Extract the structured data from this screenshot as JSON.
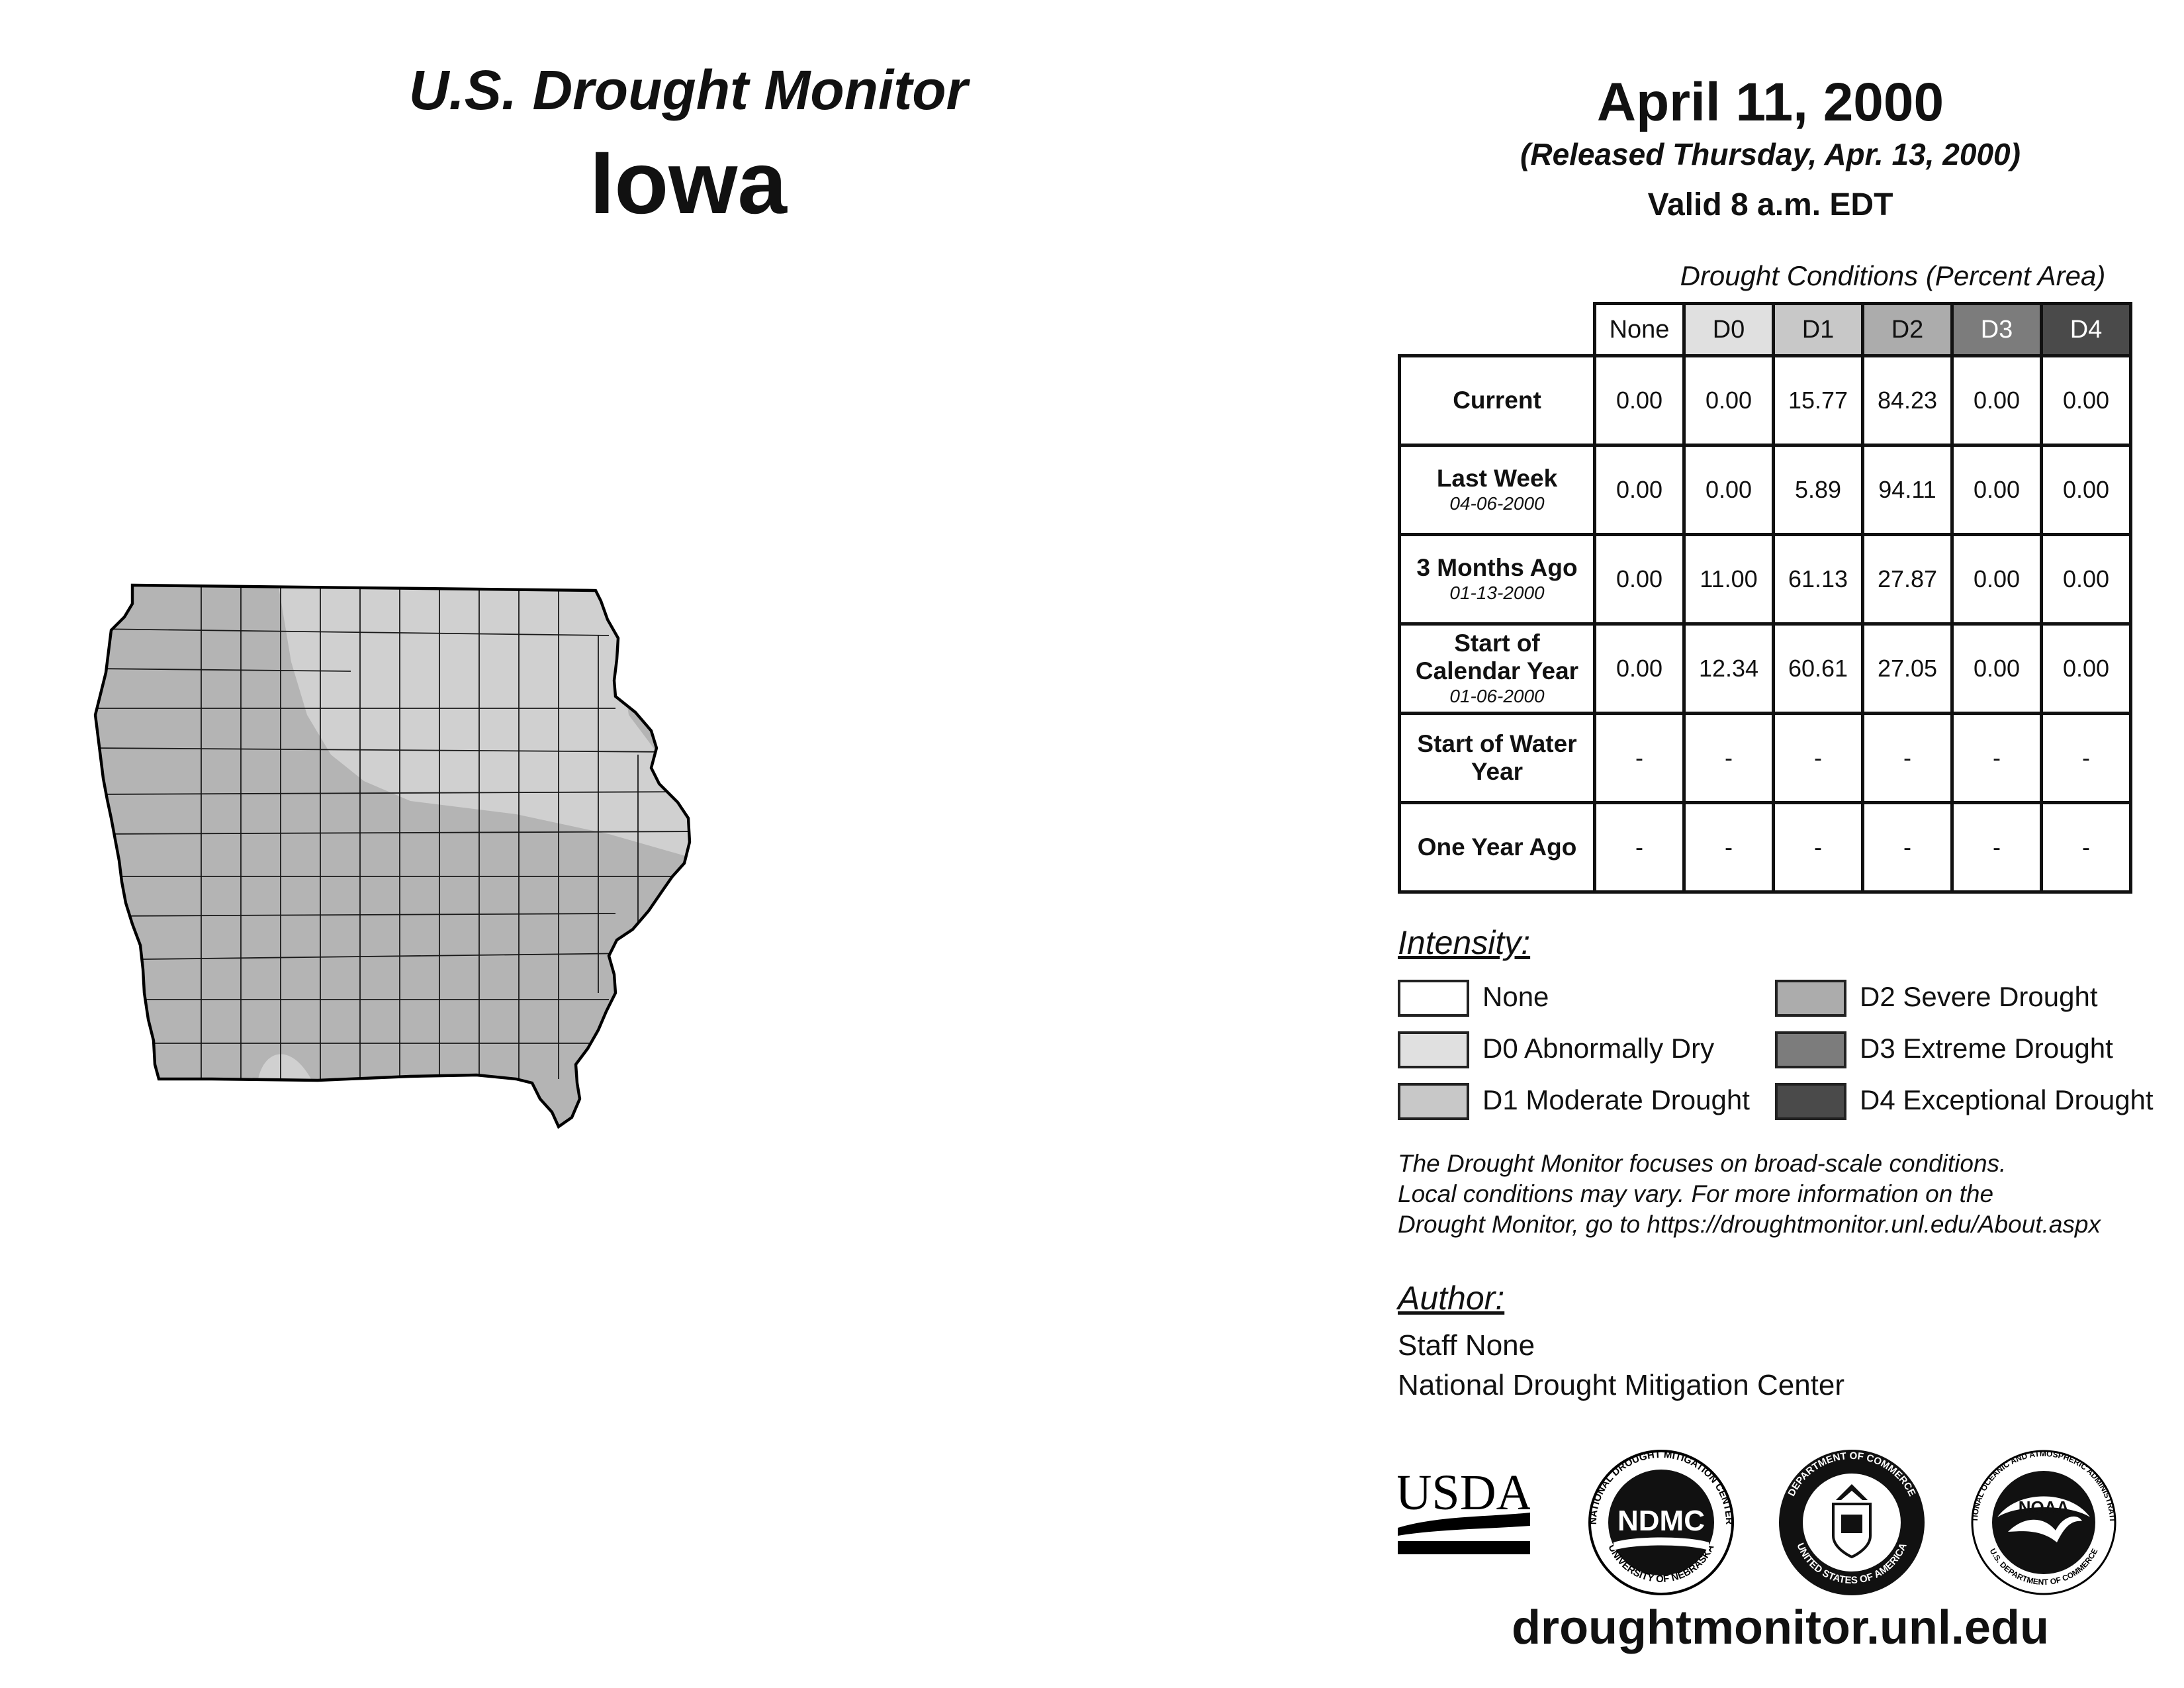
{
  "header": {
    "subtitle": "U.S. Drought Monitor",
    "state": "Iowa",
    "date": "April 11, 2000",
    "released": "(Released Thursday, Apr. 13, 2000)",
    "valid": "Valid 8 a.m. EDT"
  },
  "table": {
    "caption": "Drought Conditions (Percent Area)",
    "columns": [
      "None",
      "D0",
      "D1",
      "D2",
      "D3",
      "D4"
    ],
    "rows": [
      {
        "label": "Current",
        "date": "",
        "values": [
          "0.00",
          "0.00",
          "15.77",
          "84.23",
          "0.00",
          "0.00"
        ]
      },
      {
        "label": "Last Week",
        "date": "04-06-2000",
        "values": [
          "0.00",
          "0.00",
          "5.89",
          "94.11",
          "0.00",
          "0.00"
        ]
      },
      {
        "label": "3 Months Ago",
        "date": "01-13-2000",
        "values": [
          "0.00",
          "11.00",
          "61.13",
          "27.87",
          "0.00",
          "0.00"
        ]
      },
      {
        "label": "Start of Calendar Year",
        "date": "01-06-2000",
        "values": [
          "0.00",
          "12.34",
          "60.61",
          "27.05",
          "0.00",
          "0.00"
        ]
      },
      {
        "label": "Start of Water Year",
        "date": "",
        "values": [
          "-",
          "-",
          "-",
          "-",
          "-",
          "-"
        ]
      },
      {
        "label": "One Year Ago",
        "date": "",
        "values": [
          "-",
          "-",
          "-",
          "-",
          "-",
          "-"
        ]
      }
    ]
  },
  "legend": {
    "title": "Intensity:",
    "items": [
      {
        "label": "None",
        "color": "#ffffff"
      },
      {
        "label": "D0 Abnormally Dry",
        "color": "#e0e0e0"
      },
      {
        "label": "D1 Moderate Drought",
        "color": "#c8c8c8"
      },
      {
        "label": "D2 Severe Drought",
        "color": "#acacac"
      },
      {
        "label": "D3 Extreme Drought",
        "color": "#7c7c7c"
      },
      {
        "label": "D4 Exceptional Drought",
        "color": "#4a4a4a"
      }
    ]
  },
  "note": {
    "line1": "The Drought Monitor focuses on broad-scale conditions.",
    "line2": "Local conditions may vary. For more information on the",
    "line3": "Drought Monitor, go to https://droughtmonitor.unl.edu/About.aspx"
  },
  "author": {
    "title": "Author:",
    "name": "Staff None",
    "org": "National Drought Mitigation Center"
  },
  "logos": {
    "usda": "USDA",
    "ndmc": "NDMC",
    "ndmc_ring": "NATIONAL DROUGHT MITIGATION CENTER",
    "ndmc_bottom": "UNIVERSITY OF NEBRASKA",
    "doc_ring": "DEPARTMENT OF COMMERCE",
    "doc_bottom": "UNITED STATES OF AMERICA",
    "noaa": "NOAA",
    "noaa_ring": "NATIONAL OCEANIC AND ATMOSPHERIC ADMINISTRATION",
    "noaa_bottom": "U.S. DEPARTMENT OF COMMERCE"
  },
  "footer": {
    "url": "droughtmonitor.unl.edu"
  }
}
